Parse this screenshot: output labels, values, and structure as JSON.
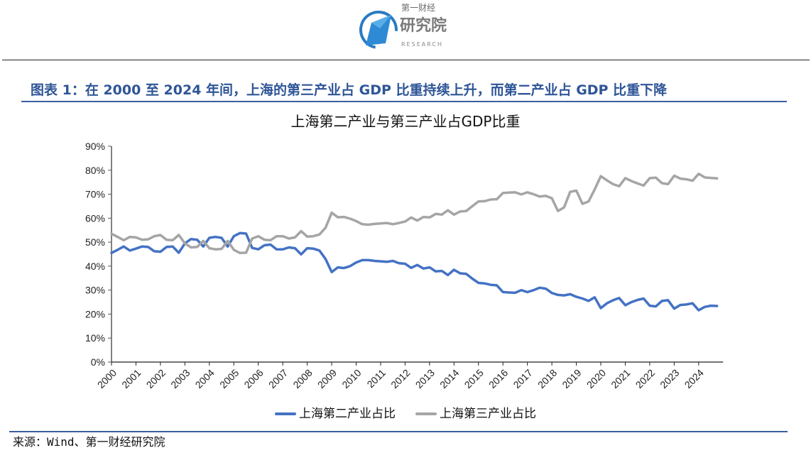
{
  "header": {
    "logo": {
      "icon": "diamond-globe-logo-icon",
      "top_text": "第一财经",
      "main_text": "研究院",
      "sub_text": "RESEARCH"
    }
  },
  "figure": {
    "title": "图表 1：在 2000 至 2024 年间，上海的第三产业占 GDP 比重持续上升，而第二产业占 GDP 比重下降",
    "source": "来源：Wind、第一财经研究院"
  },
  "colors": {
    "secondary": "#4472c4",
    "tertiary": "#a5a5a5",
    "title_blue": "#2e5597"
  },
  "chart_data": {
    "type": "line",
    "title": "上海第二产业与第三产业占GDP比重",
    "xlabel": "",
    "ylabel": "",
    "frequency": "quarterly",
    "x_start": "2000Q1",
    "x_end": "2024Q4",
    "ylim": [
      0,
      90
    ],
    "yticks": [
      "0%",
      "10%",
      "20%",
      "30%",
      "40%",
      "50%",
      "60%",
      "70%",
      "80%",
      "90%"
    ],
    "xtick_labels": [
      "2000",
      "2001",
      "2002",
      "2003",
      "2004",
      "2005",
      "2006",
      "2007",
      "2008",
      "2009",
      "2010",
      "2011",
      "2012",
      "2013",
      "2014",
      "2015",
      "2016",
      "2017",
      "2018",
      "2019",
      "2020",
      "2021",
      "2022",
      "2023",
      "2024"
    ],
    "grid": false,
    "legend_position": "bottom",
    "series": [
      {
        "name": "上海第二产业占比",
        "color": "#4472c4",
        "values": [
          45.5,
          46.8,
          48.2,
          46.5,
          47.3,
          48.2,
          48.0,
          46.2,
          46.0,
          48.0,
          48.2,
          45.6,
          49.5,
          51.3,
          51.0,
          48.2,
          51.8,
          52.2,
          51.8,
          48.2,
          52.5,
          53.8,
          53.6,
          47.6,
          47.0,
          48.7,
          49.0,
          47.0,
          47.0,
          47.8,
          47.5,
          44.9,
          47.5,
          47.3,
          46.5,
          43.0,
          37.5,
          39.5,
          39.2,
          40.0,
          41.5,
          42.5,
          42.5,
          42.2,
          42.0,
          41.8,
          42.2,
          41.2,
          41.0,
          39.3,
          40.5,
          39.0,
          39.5,
          37.8,
          38.0,
          36.3,
          38.5,
          37.0,
          36.8,
          34.8,
          33.0,
          32.8,
          32.2,
          32.0,
          29.2,
          29.0,
          28.9,
          30.0,
          29.2,
          30.0,
          31.0,
          30.6,
          28.8,
          28.0,
          27.8,
          28.3,
          27.2,
          26.5,
          25.5,
          27.0,
          22.5,
          24.5,
          25.8,
          26.7,
          23.7,
          25.0,
          25.9,
          26.5,
          23.5,
          23.2,
          25.5,
          25.8,
          22.3,
          23.8,
          24.0,
          24.5,
          21.6,
          23.0,
          23.5,
          23.4
        ]
      },
      {
        "name": "上海第三产业占比",
        "color": "#a5a5a5",
        "values": [
          53.5,
          52.2,
          50.8,
          52.2,
          52.0,
          51.0,
          51.2,
          52.5,
          53.0,
          51.0,
          50.8,
          53.0,
          49.5,
          47.8,
          48.0,
          50.5,
          47.5,
          47.0,
          47.2,
          50.5,
          46.8,
          45.5,
          45.6,
          51.5,
          52.5,
          51.0,
          50.8,
          52.5,
          52.5,
          51.5,
          52.0,
          54.6,
          52.3,
          52.5,
          53.2,
          56.0,
          62.3,
          60.4,
          60.5,
          59.8,
          58.8,
          57.5,
          57.3,
          57.6,
          57.8,
          58.0,
          57.5,
          58.0,
          58.6,
          60.3,
          59.0,
          60.5,
          60.3,
          61.8,
          61.5,
          63.3,
          61.5,
          62.8,
          63.0,
          65.0,
          67.0,
          67.1,
          67.8,
          67.9,
          70.5,
          70.7,
          70.8,
          69.9,
          70.8,
          70.0,
          69.0,
          69.3,
          68.3,
          63.0,
          64.5,
          71.0,
          71.5,
          66.0,
          67.0,
          72.0,
          77.5,
          75.8,
          74.2,
          73.3,
          76.7,
          75.5,
          74.5,
          73.6,
          76.7,
          76.9,
          74.6,
          74.2,
          77.7,
          76.5,
          76.2,
          75.6,
          78.5,
          77.0,
          76.8,
          76.6
        ]
      }
    ]
  }
}
